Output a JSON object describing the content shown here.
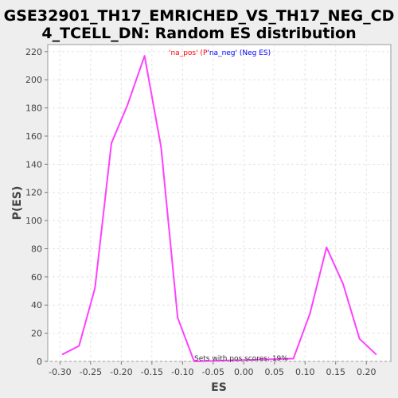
{
  "chart_data": {
    "type": "line",
    "title_line1": "GSE32901_TH17_EMRICHED_VS_TH17_NEG_CD",
    "title_line2": "4_TCELL_DN: Random ES distribution",
    "xlabel": "ES",
    "ylabel": "P(ES)",
    "xlim": [
      -0.32,
      0.24
    ],
    "ylim": [
      0,
      225
    ],
    "grid": true,
    "x_ticks": [
      -0.3,
      -0.25,
      -0.2,
      -0.15,
      -0.1,
      -0.05,
      0.0,
      0.05,
      0.1,
      0.15,
      0.2
    ],
    "x_tick_labels": [
      "-0.30",
      "-0.25",
      "-0.20",
      "-0.15",
      "-0.10",
      "-0.05",
      "0.00",
      "0.05",
      "0.10",
      "0.15",
      "0.20"
    ],
    "y_ticks": [
      0,
      20,
      40,
      60,
      80,
      100,
      120,
      140,
      160,
      180,
      200,
      220
    ],
    "y_tick_labels": [
      "0",
      "20",
      "40",
      "60",
      "80",
      "100",
      "120",
      "140",
      "160",
      "180",
      "200",
      "220"
    ],
    "legend": {
      "placement": "top-center",
      "pos_text": "'na_pos' (P",
      "neg_text": "'na_neg' (Neg ES)",
      "pos_color": "#ff0000",
      "neg_color": "#0000ff"
    },
    "annotation": "Sets with pos scores: 19%",
    "series": [
      {
        "color": "#ff40ff",
        "x": [
          -0.296,
          -0.269,
          -0.243,
          -0.216,
          -0.19,
          -0.162,
          -0.135,
          -0.108,
          -0.081,
          0.081,
          0.108,
          0.135,
          0.162,
          0.189,
          0.216
        ],
        "y": [
          5,
          11,
          52,
          155,
          182,
          217,
          152,
          31,
          0,
          2,
          34,
          81,
          55,
          16,
          5
        ]
      }
    ]
  }
}
